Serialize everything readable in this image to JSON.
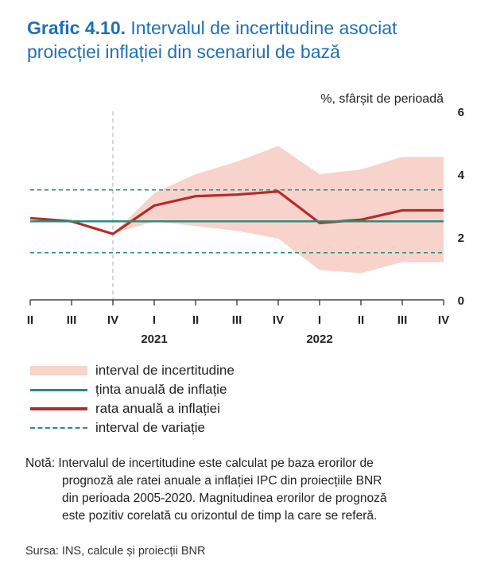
{
  "header": {
    "number": "Grafic 4.10.",
    "title_line1": "Intervalul de incertitudine  asociat",
    "title_line2": "proiecției inflației din scenariul de bază"
  },
  "chart_data": {
    "type": "line",
    "unit_label": "%, sfârșit de perioadă",
    "categories": [
      "II",
      "III",
      "IV",
      "I",
      "II",
      "III",
      "IV",
      "I",
      "II",
      "III",
      "IV"
    ],
    "year_labels": [
      {
        "label": "2021",
        "at_index": 3
      },
      {
        "label": "2022",
        "at_index": 7
      }
    ],
    "ylim": [
      0,
      6
    ],
    "yticks": [
      0,
      2,
      4,
      6
    ],
    "projection_start_index": 2,
    "series": [
      {
        "name": "rata anuală a inflației",
        "color": "#b32d2a",
        "values": [
          2.6,
          2.5,
          2.1,
          3.0,
          3.3,
          3.35,
          3.45,
          2.45,
          2.55,
          2.85,
          2.85
        ]
      },
      {
        "name": "ținta anuală de inflație",
        "color": "#2e8b7b",
        "values": [
          2.5,
          2.5,
          2.5,
          2.5,
          2.5,
          2.5,
          2.5,
          2.5,
          2.5,
          2.5,
          2.5
        ]
      }
    ],
    "band": {
      "name": "interval de incertitudine",
      "color": "#f7d3cb",
      "upper": [
        2.6,
        2.5,
        2.1,
        3.4,
        4.0,
        4.4,
        4.9,
        4.0,
        4.15,
        4.55,
        4.55
      ],
      "lower": [
        2.6,
        2.5,
        2.1,
        2.5,
        2.35,
        2.2,
        1.95,
        0.95,
        0.85,
        1.2,
        1.2
      ]
    },
    "variation_interval": {
      "name": "interval de variație",
      "upper": 3.5,
      "lower": 1.5,
      "color": "#2e8b7b"
    }
  },
  "legend": {
    "band_label": "interval de incertitudine",
    "target_label": "ținta anuală de inflație",
    "inflation_label": "rata anuală a inflației",
    "variation_label": "interval de variație"
  },
  "note": {
    "prefix": "Notă:",
    "line1": "Intervalul de incertitudine  este calculat pe baza erorilor de",
    "line2": "prognoză ale ratei anuale a inflației IPC din proiecțiile BNR",
    "line3": "din perioada 2005-2020. Magnitudinea erorilor de prognoză",
    "line4": "este pozitiv corelată cu orizontul de timp la care se referă."
  },
  "source": "Sursa: INS, calcule și proiecții BNR"
}
